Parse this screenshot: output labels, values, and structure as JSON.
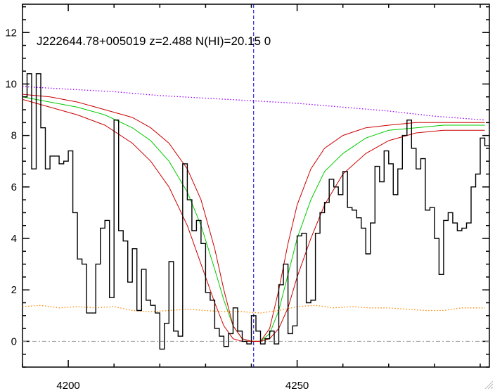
{
  "chart_data": {
    "type": "line",
    "title": "J222644.78+005019 z=2.488 N(HI)=20.15 0",
    "xlabel": "",
    "ylabel": "",
    "xlim": [
      4190,
      4292
    ],
    "ylim": [
      -1,
      13.1
    ],
    "x_ticks": [
      4200,
      4250
    ],
    "y_ticks": [
      0,
      2,
      4,
      6,
      8,
      10,
      12
    ],
    "x_tick_labels": [
      "4200",
      "4250"
    ],
    "y_tick_labels": [
      "0",
      "2",
      "4",
      "6",
      "8",
      "10",
      "12"
    ],
    "absorber_center": 4240.5,
    "colors": {
      "flux": "#000000",
      "model": "#00cc00",
      "model_bounds": "#cc0000",
      "continuum": "#9900ff",
      "error": "#ff8800",
      "center_line": "#0000cc",
      "zero_line": "#999999"
    },
    "flux": {
      "x": [
        4190.0,
        4191.0,
        4192.0,
        4193.0,
        4194.0,
        4195.0,
        4196.0,
        4197.0,
        4198.0,
        4199.0,
        4200.0,
        4201.0,
        4202.0,
        4203.0,
        4204.0,
        4205.0,
        4206.0,
        4207.0,
        4208.0,
        4209.0,
        4210.0,
        4211.0,
        4212.0,
        4213.0,
        4214.0,
        4215.0,
        4216.0,
        4217.0,
        4218.0,
        4219.0,
        4220.0,
        4221.0,
        4222.0,
        4223.0,
        4224.0,
        4225.0,
        4226.0,
        4227.0,
        4228.0,
        4229.0,
        4230.0,
        4231.0,
        4232.0,
        4233.0,
        4234.0,
        4235.0,
        4236.0,
        4237.0,
        4238.0,
        4239.0,
        4240.0,
        4241.0,
        4242.0,
        4243.0,
        4244.0,
        4245.0,
        4246.0,
        4247.0,
        4248.0,
        4249.0,
        4250.0,
        4251.0,
        4252.0,
        4253.0,
        4254.0,
        4255.0,
        4256.0,
        4257.0,
        4258.0,
        4259.0,
        4260.0,
        4261.0,
        4262.0,
        4263.0,
        4264.0,
        4265.0,
        4266.0,
        4267.0,
        4268.0,
        4269.0,
        4270.0,
        4271.0,
        4272.0,
        4273.0,
        4274.0,
        4275.0,
        4276.0,
        4277.0,
        4278.0,
        4279.0,
        4280.0,
        4281.0,
        4282.0,
        4283.0,
        4284.0,
        4285.0,
        4286.0,
        4287.0,
        4288.0,
        4289.0,
        4290.0,
        4291.0
      ],
      "y": [
        9.5,
        10.4,
        6.7,
        10.4,
        8.3,
        6.7,
        7.2,
        7.2,
        6.9,
        7.0,
        7.4,
        5.0,
        3.2,
        3.0,
        1.1,
        1.1,
        3.0,
        4.4,
        4.7,
        1.7,
        8.6,
        4.3,
        3.9,
        2.3,
        3.6,
        1.2,
        2.8,
        1.6,
        1.4,
        1.1,
        -0.3,
        0.7,
        3.1,
        0.4,
        0.2,
        6.9,
        5.5,
        4.3,
        4.7,
        3.8,
        1.9,
        1.6,
        0.5,
        0.2,
        -0.2,
        0.3,
        1.3,
        0.4,
        0.0,
        -0.1,
        1.0,
        0.4,
        -0.1,
        0.1,
        0.4,
        -0.1,
        2.2,
        3.0,
        0.3,
        0.6,
        4.1,
        4.2,
        1.5,
        1.6,
        4.2,
        5.0,
        5.4,
        6.3,
        6.0,
        5.7,
        6.6,
        5.2,
        5.1,
        4.8,
        4.4,
        3.4,
        4.6,
        6.8,
        6.2,
        7.4,
        6.9,
        5.7,
        6.7,
        8.0,
        8.6,
        7.5,
        6.7,
        7.1,
        5.1,
        5.2,
        4.0,
        2.6,
        4.7,
        5.0,
        4.6,
        4.3,
        4.4,
        4.6,
        6.0,
        6.5,
        7.9,
        7.6
      ]
    },
    "series": [
      {
        "role": "model",
        "x": [
          4190,
          4196,
          4202,
          4208,
          4214,
          4218,
          4222,
          4226,
          4229,
          4232,
          4234,
          4236,
          4238,
          4240,
          4242,
          4244,
          4246,
          4248,
          4250,
          4253,
          4256,
          4260,
          4265,
          4270,
          4276,
          4282,
          4288,
          4291
        ],
        "y": [
          9.5,
          9.3,
          9.1,
          8.8,
          8.3,
          7.8,
          7.0,
          5.8,
          4.5,
          2.8,
          1.6,
          0.6,
          0.1,
          0.0,
          0.0,
          0.3,
          1.2,
          2.6,
          4.0,
          5.5,
          6.6,
          7.3,
          7.9,
          8.2,
          8.3,
          8.4,
          8.4,
          8.4
        ]
      },
      {
        "role": "model-upper",
        "x": [
          4190,
          4196,
          4202,
          4208,
          4214,
          4218,
          4222,
          4226,
          4229,
          4232,
          4234,
          4236,
          4238,
          4240,
          4242,
          4244,
          4246,
          4248,
          4250,
          4253,
          4256,
          4260,
          4265,
          4270,
          4276,
          4282,
          4288,
          4291
        ],
        "y": [
          9.6,
          9.5,
          9.3,
          9.0,
          8.7,
          8.3,
          7.7,
          6.7,
          5.5,
          3.6,
          2.0,
          0.6,
          0.1,
          0.0,
          0.0,
          0.5,
          2.0,
          3.8,
          5.3,
          6.7,
          7.5,
          8.0,
          8.3,
          8.4,
          8.5,
          8.5,
          8.5,
          8.5
        ]
      },
      {
        "role": "model-lower",
        "x": [
          4190,
          4196,
          4202,
          4208,
          4214,
          4218,
          4222,
          4226,
          4229,
          4232,
          4234,
          4236,
          4238,
          4240,
          4242,
          4244,
          4246,
          4248,
          4250,
          4253,
          4256,
          4260,
          4265,
          4270,
          4276,
          4282,
          4288,
          4291
        ],
        "y": [
          9.4,
          9.1,
          8.8,
          8.4,
          7.7,
          7.0,
          6.0,
          4.5,
          3.0,
          1.5,
          0.6,
          0.1,
          0.0,
          0.0,
          0.0,
          0.1,
          0.5,
          1.3,
          2.5,
          4.0,
          5.3,
          6.5,
          7.3,
          7.8,
          8.1,
          8.2,
          8.2,
          8.2
        ]
      },
      {
        "role": "continuum",
        "x": [
          4190,
          4200,
          4210,
          4220,
          4230,
          4240,
          4250,
          4260,
          4270,
          4280,
          4291
        ],
        "y": [
          9.9,
          9.8,
          9.7,
          9.55,
          9.45,
          9.35,
          9.25,
          9.1,
          8.95,
          8.75,
          8.6
        ]
      },
      {
        "role": "error",
        "x": [
          4190,
          4194,
          4198,
          4202,
          4206,
          4210,
          4214,
          4218,
          4222,
          4226,
          4230,
          4234,
          4238,
          4242,
          4246,
          4250,
          4254,
          4258,
          4262,
          4266,
          4270,
          4274,
          4278,
          4282,
          4286,
          4291
        ],
        "y": [
          1.35,
          1.4,
          1.3,
          1.35,
          1.3,
          1.35,
          1.2,
          1.15,
          1.2,
          1.25,
          1.2,
          1.15,
          1.15,
          1.1,
          1.2,
          1.35,
          1.4,
          1.3,
          1.35,
          1.3,
          1.3,
          1.25,
          1.2,
          1.2,
          1.3,
          1.3
        ]
      }
    ]
  }
}
